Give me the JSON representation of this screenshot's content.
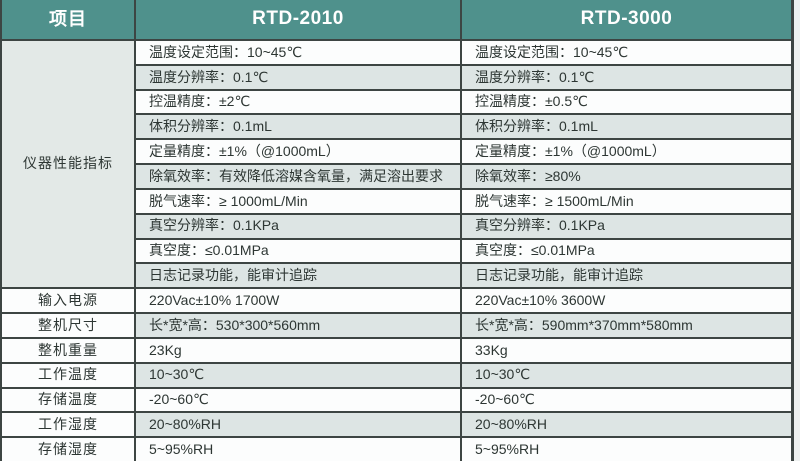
{
  "header": {
    "item_column": "项目",
    "product1": "RTD-2010",
    "product2": "RTD-3000"
  },
  "merged_label": "仪器性能指标",
  "performance_rows": [
    {
      "rtd2010": "温度设定范围：10~45℃",
      "rtd3000": "温度设定范围：10~45℃"
    },
    {
      "rtd2010": "温度分辨率：0.1℃",
      "rtd3000": "温度分辨率：0.1℃"
    },
    {
      "rtd2010": "控温精度：±2℃",
      "rtd3000": "控温精度：±0.5℃"
    },
    {
      "rtd2010": "体积分辨率：0.1mL",
      "rtd3000": "体积分辨率：0.1mL"
    },
    {
      "rtd2010": "定量精度：±1%（@1000mL）",
      "rtd3000": "定量精度：±1%（@1000mL）"
    },
    {
      "rtd2010": "除氧效率：有效降低溶媒含氧量，满足溶出要求",
      "rtd3000": "除氧效率：≥80%"
    },
    {
      "rtd2010": "脱气速率：≥ 1000mL/Min",
      "rtd3000": "脱气速率：≥ 1500mL/Min"
    },
    {
      "rtd2010": "真空分辨率：0.1KPa",
      "rtd3000": "真空分辨率：0.1KPa"
    },
    {
      "rtd2010": "真空度：≤0.01MPa",
      "rtd3000": "真空度：≤0.01MPa"
    },
    {
      "rtd2010": "日志记录功能，能审计追踪",
      "rtd3000": "日志记录功能，能审计追踪"
    }
  ],
  "spec_rows": [
    {
      "label": "输入电源",
      "rtd2010": "220Vac±10% 1700W",
      "rtd3000": "220Vac±10% 3600W"
    },
    {
      "label": "整机尺寸",
      "rtd2010": "长*宽*高：530*300*560mm",
      "rtd3000": "长*宽*高：590mm*370mm*580mm"
    },
    {
      "label": "整机重量",
      "rtd2010": "23Kg",
      "rtd3000": "33Kg"
    },
    {
      "label": "工作温度",
      "rtd2010": "10~30℃",
      "rtd3000": "10~30℃"
    },
    {
      "label": "存储温度",
      "rtd2010": "-20~60℃",
      "rtd3000": "-20~60℃"
    },
    {
      "label": "工作湿度",
      "rtd2010": "20~80%RH",
      "rtd3000": "20~80%RH"
    },
    {
      "label": "存储湿度",
      "rtd2010": "5~95%RH",
      "rtd3000": "5~95%RH"
    }
  ],
  "colors": {
    "header_teal": "#4f918c",
    "row_white": "#fcfdfd",
    "row_alt": "#dde5e4",
    "merged_cell": "#e3e9e7",
    "grid_line": "#3d4543",
    "text": "#2d3633",
    "header_text": "#ffffff"
  }
}
